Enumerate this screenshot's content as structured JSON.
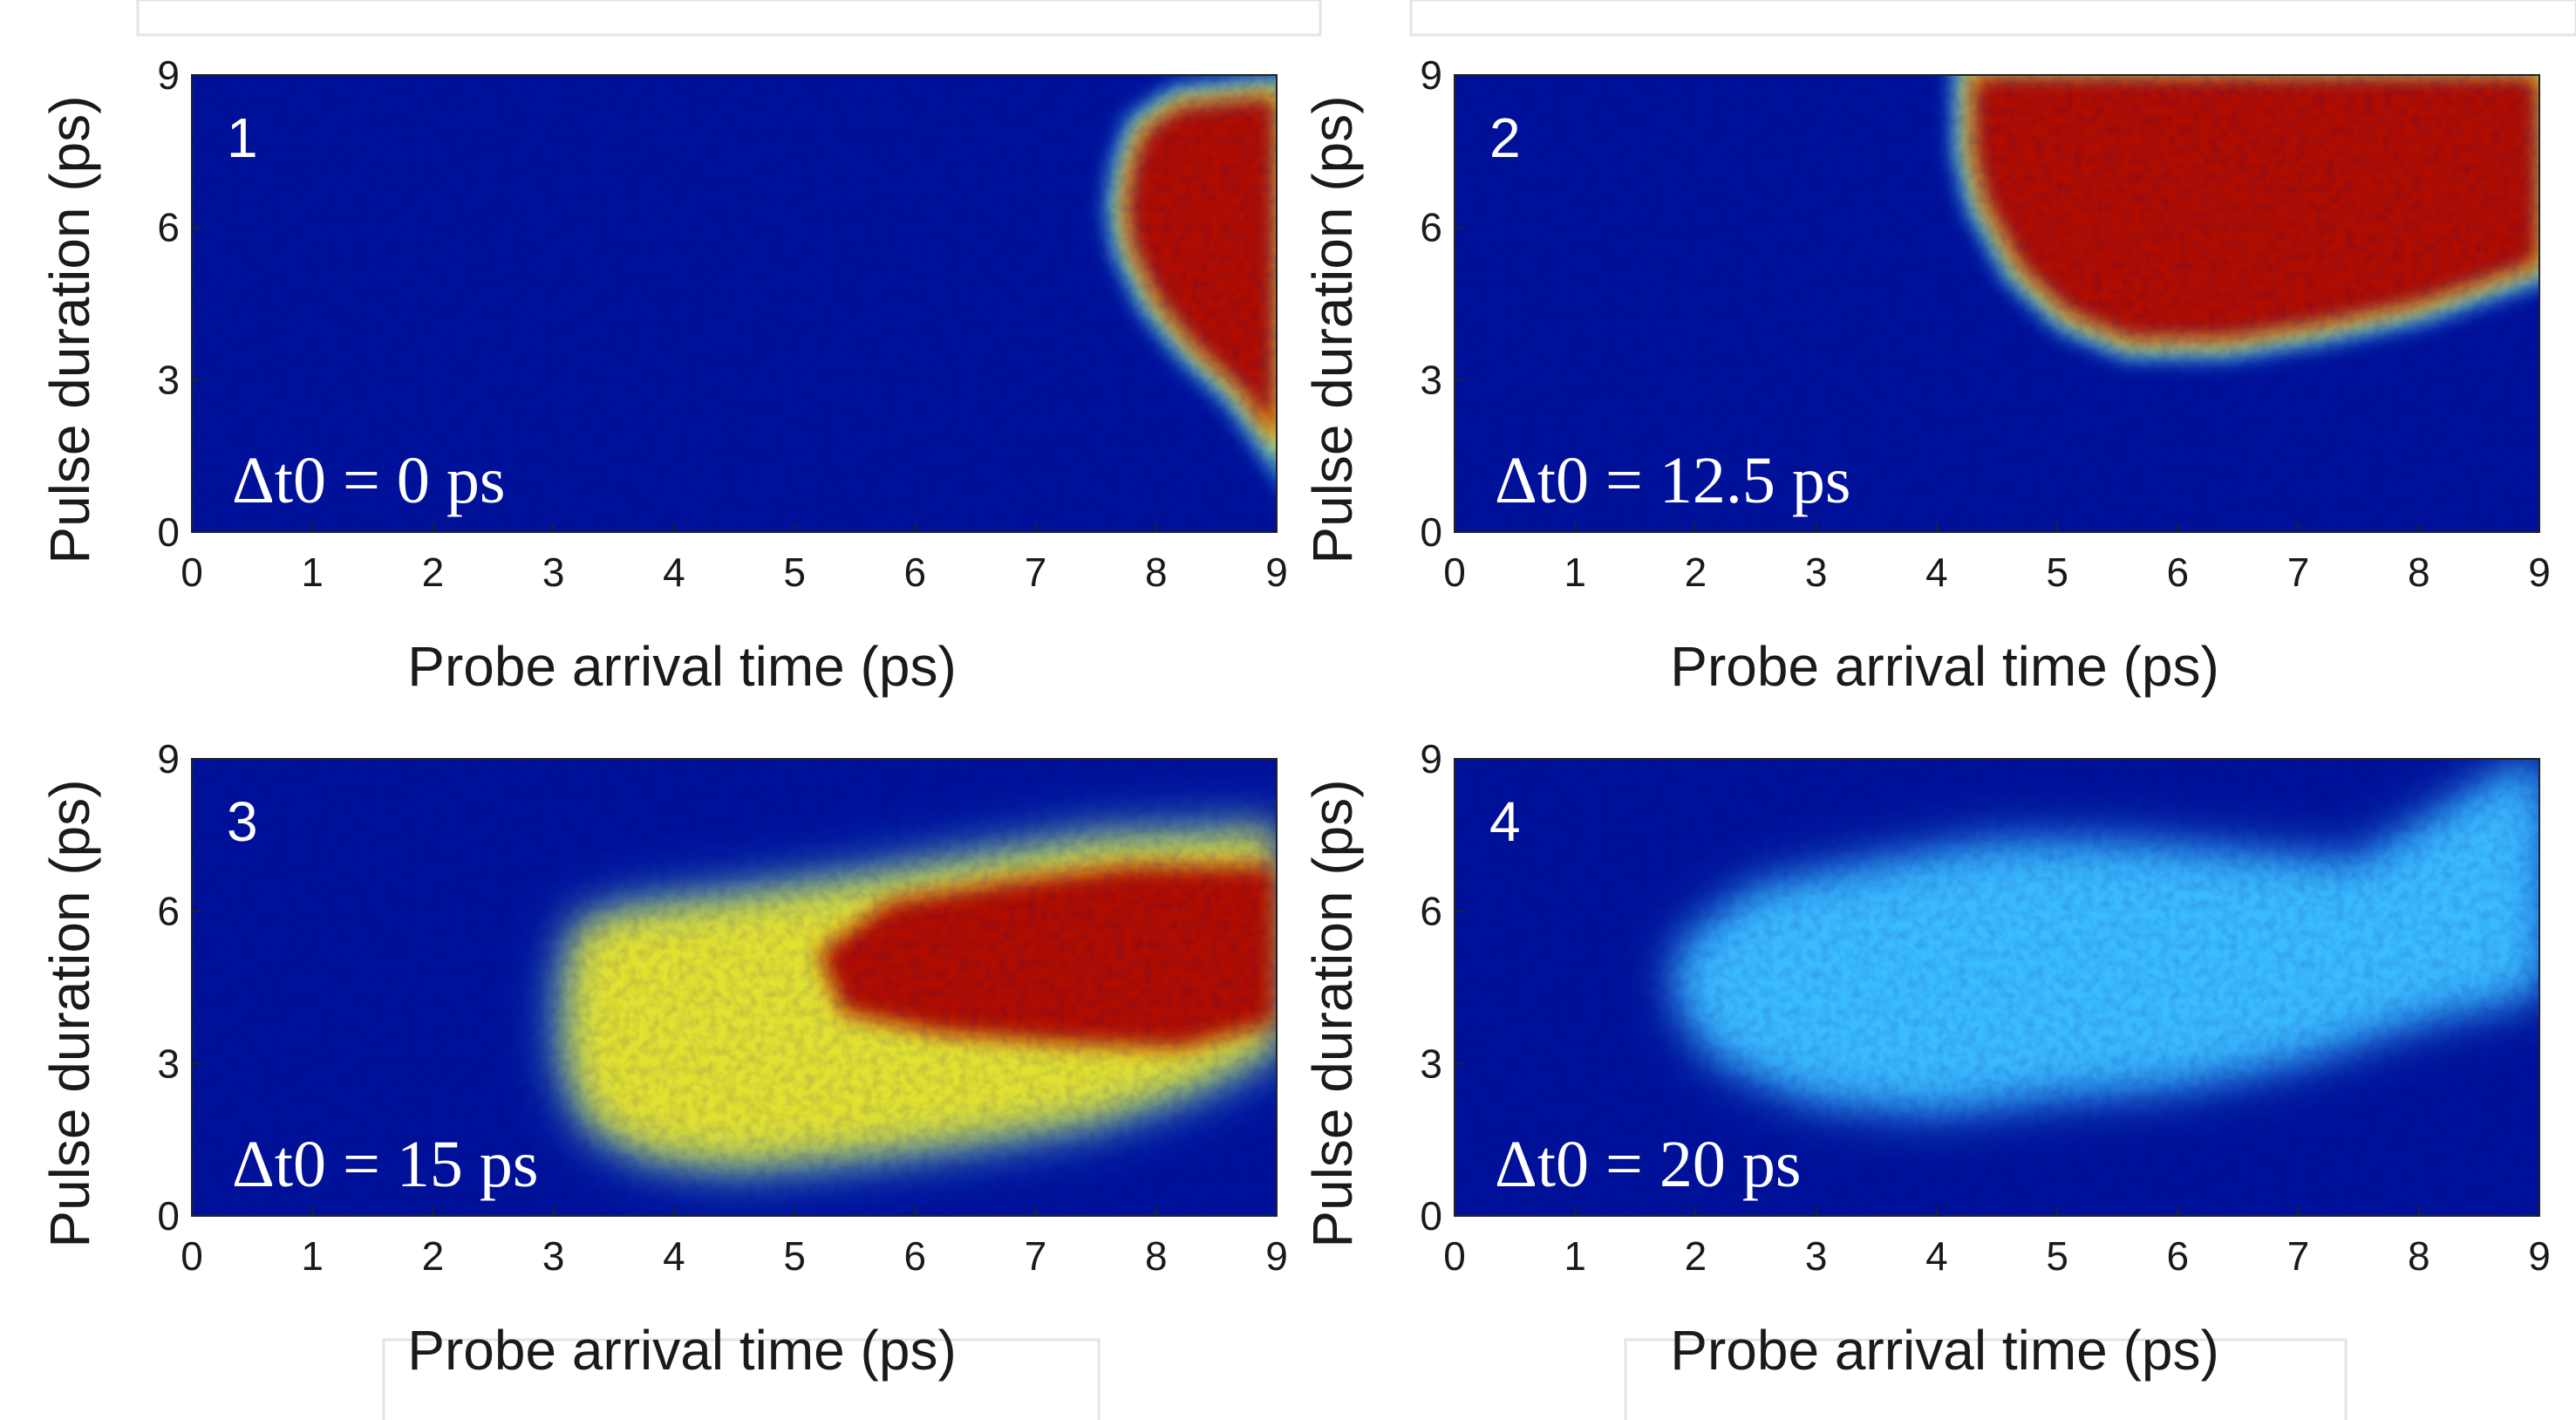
{
  "colors": {
    "background_low": "#00129a",
    "mid_cyan": "#2ea8ff",
    "mid_yellow": "#f5e81e",
    "high": "#b00a05",
    "text": "#1a1a1a",
    "panel_text": "#ffffff"
  },
  "chart_data": [
    {
      "type": "heatmap",
      "panel_label": "1",
      "annotation": "Δt0 = 0 ps",
      "xlabel": "Probe arrival time (ps)",
      "ylabel": "Pulse duration (ps)",
      "xlim": [
        0,
        9
      ],
      "ylim": [
        0,
        9
      ],
      "xticks": [
        0,
        1,
        2,
        3,
        4,
        5,
        6,
        7,
        8,
        9
      ],
      "yticks": [
        0,
        3,
        6,
        9
      ],
      "colormap": "jet",
      "high_region_boundary": [
        [
          9.0,
          1.8
        ],
        [
          8.7,
          2.8
        ],
        [
          8.3,
          3.7
        ],
        [
          8.0,
          4.6
        ],
        [
          7.8,
          5.6
        ],
        [
          7.75,
          6.4
        ],
        [
          7.8,
          7.2
        ],
        [
          7.9,
          7.9
        ],
        [
          8.2,
          8.4
        ],
        [
          9.0,
          8.6
        ]
      ]
    },
    {
      "type": "heatmap",
      "panel_label": "2",
      "annotation": "Δt0 = 12.5 ps",
      "xlabel": "Probe arrival time (ps)",
      "ylabel": "Pulse duration (ps)",
      "xlim": [
        0,
        9
      ],
      "ylim": [
        0,
        9
      ],
      "xticks": [
        0,
        1,
        2,
        3,
        4,
        5,
        6,
        7,
        8,
        9
      ],
      "yticks": [
        0,
        3,
        6,
        9
      ],
      "colormap": "jet",
      "high_region_boundary": [
        [
          4.3,
          9.0
        ],
        [
          4.3,
          7.5
        ],
        [
          4.4,
          6.5
        ],
        [
          4.7,
          5.2
        ],
        [
          5.1,
          4.3
        ],
        [
          5.6,
          3.8
        ],
        [
          6.4,
          3.8
        ],
        [
          7.2,
          4.1
        ],
        [
          8.0,
          4.5
        ],
        [
          9.0,
          5.3
        ],
        [
          9.0,
          9.0
        ]
      ]
    },
    {
      "type": "heatmap",
      "panel_label": "3",
      "annotation": "Δt0 = 15 ps",
      "xlabel": "Probe arrival time (ps)",
      "ylabel": "Pulse duration (ps)",
      "xlim": [
        0,
        9
      ],
      "ylim": [
        0,
        9
      ],
      "xticks": [
        0,
        1,
        2,
        3,
        4,
        5,
        6,
        7,
        8,
        9
      ],
      "yticks": [
        0,
        3,
        6,
        9
      ],
      "colormap": "jet",
      "glow_region_boundary": [
        [
          3.1,
          4.6
        ],
        [
          3.2,
          5.7
        ],
        [
          3.6,
          6.0
        ],
        [
          4.6,
          6.3
        ],
        [
          5.5,
          6.6
        ],
        [
          6.5,
          7.0
        ],
        [
          7.5,
          7.4
        ],
        [
          8.5,
          7.5
        ],
        [
          9.0,
          7.6
        ],
        [
          9.0,
          3.3
        ],
        [
          8.3,
          2.5
        ],
        [
          7.5,
          1.9
        ],
        [
          6.5,
          1.5
        ],
        [
          5.5,
          1.2
        ],
        [
          4.5,
          1.0
        ],
        [
          3.8,
          1.2
        ],
        [
          3.3,
          1.8
        ],
        [
          3.1,
          3.0
        ]
      ],
      "high_region_boundary": [
        [
          5.2,
          5.2
        ],
        [
          5.8,
          6.2
        ],
        [
          6.8,
          6.6
        ],
        [
          7.8,
          6.9
        ],
        [
          9.0,
          6.9
        ],
        [
          9.0,
          3.8
        ],
        [
          8.2,
          3.3
        ],
        [
          7.2,
          3.4
        ],
        [
          6.2,
          3.6
        ],
        [
          5.4,
          4.0
        ]
      ]
    },
    {
      "type": "heatmap",
      "panel_label": "4",
      "annotation": "Δt0 = 20 ps",
      "xlabel": "Probe arrival time (ps)",
      "ylabel": "Pulse duration (ps)",
      "xlim": [
        0,
        9
      ],
      "ylim": [
        0,
        9
      ],
      "xticks": [
        0,
        1,
        2,
        3,
        4,
        5,
        6,
        7,
        8,
        9
      ],
      "yticks": [
        0,
        3,
        6,
        9
      ],
      "colormap": "jet",
      "glow_region_boundary": [
        [
          1.9,
          5.2
        ],
        [
          2.5,
          6.3
        ],
        [
          3.5,
          6.8
        ],
        [
          4.5,
          7.2
        ],
        [
          5.5,
          7.2
        ],
        [
          6.5,
          7.0
        ],
        [
          7.5,
          6.8
        ],
        [
          8.2,
          7.8
        ],
        [
          9.0,
          9.0
        ],
        [
          9.0,
          4.5
        ],
        [
          8.0,
          4.0
        ],
        [
          7.0,
          3.2
        ],
        [
          6.0,
          2.7
        ],
        [
          5.0,
          2.5
        ],
        [
          4.0,
          2.2
        ],
        [
          3.0,
          2.4
        ],
        [
          2.2,
          3.2
        ],
        [
          1.9,
          4.2
        ]
      ]
    }
  ]
}
